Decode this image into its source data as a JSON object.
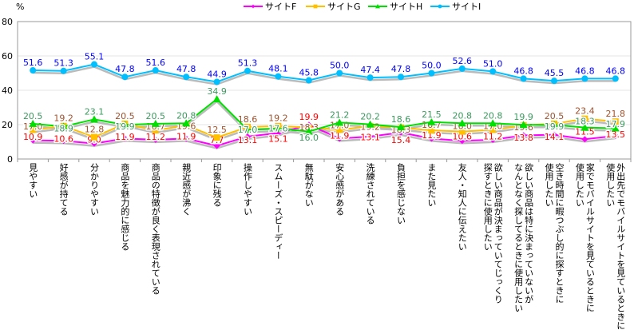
{
  "chart_data": {
    "type": "line",
    "title": "",
    "ylabel": "%",
    "xlabel": "",
    "ylim": [
      0,
      80
    ],
    "yticks": [
      0,
      20,
      40,
      60,
      80
    ],
    "grid": true,
    "legend_position": "top-center",
    "categories": [
      "見やすい",
      "好感が持てる",
      "分かりやすい",
      "商品を魅力的に感じる",
      "商品の特徴が良く表現されている",
      "親近感が沸く",
      "印象に残る",
      "操作しやすい",
      "スムーズ・スピーディー",
      "無駄がない",
      "安心感がある",
      "洗練されている",
      "負担を感じない",
      "また見たい",
      "友人・知人に伝えたい",
      "欲しい商品が決まっていてじっくり\n探すときに使用したい",
      "欲しい商品は特に決まっていないが\nなんとなく探してるときに使用したい",
      "空き時間に暇つぶし的に探すときに\n使用したい",
      "家でモバイルサイトを見ているときに\n使用したい",
      "外出先でモバイルサイトを見ているときに\n使用したい"
    ],
    "series": [
      {
        "name": "サイトF",
        "color": "#ff00ff",
        "label_color": "#ff0000",
        "marker": "diamond",
        "values": [
          10.9,
          10.6,
          9.0,
          11.9,
          11.2,
          11.9,
          7.7,
          13.1,
          15.1,
          19.9,
          11.9,
          13.1,
          15.4,
          11.9,
          10.6,
          11.2,
          13.8,
          14.1,
          11.5,
          13.5
        ]
      },
      {
        "name": "サイトG",
        "color": "#ffc000",
        "label_color": "#a0522d",
        "marker": "square",
        "values": [
          17.0,
          19.2,
          12.8,
          20.5,
          16.7,
          19.6,
          12.5,
          18.6,
          19.2,
          18.3,
          17.0,
          19.2,
          18.3,
          16.7,
          16.0,
          17.0,
          19.6,
          20.5,
          23.4,
          21.8
        ]
      },
      {
        "name": "サイトH",
        "color": "#00e000",
        "label_color": "#3c9a5f",
        "marker": "triangle",
        "values": [
          20.5,
          18.9,
          23.1,
          19.9,
          20.5,
          20.8,
          34.9,
          17.0,
          17.6,
          16.0,
          21.2,
          20.2,
          18.6,
          21.5,
          20.8,
          20.8,
          19.9,
          19.9,
          18.3,
          17.9
        ]
      },
      {
        "name": "サイトI",
        "color": "#00bfff",
        "label_color": "#0000ff",
        "marker": "circle",
        "values": [
          51.6,
          51.3,
          55.1,
          47.8,
          51.6,
          47.8,
          44.9,
          51.3,
          48.1,
          45.8,
          50.0,
          47.4,
          47.8,
          50.0,
          52.6,
          51.0,
          46.8,
          45.5,
          46.8,
          46.8
        ]
      }
    ]
  }
}
